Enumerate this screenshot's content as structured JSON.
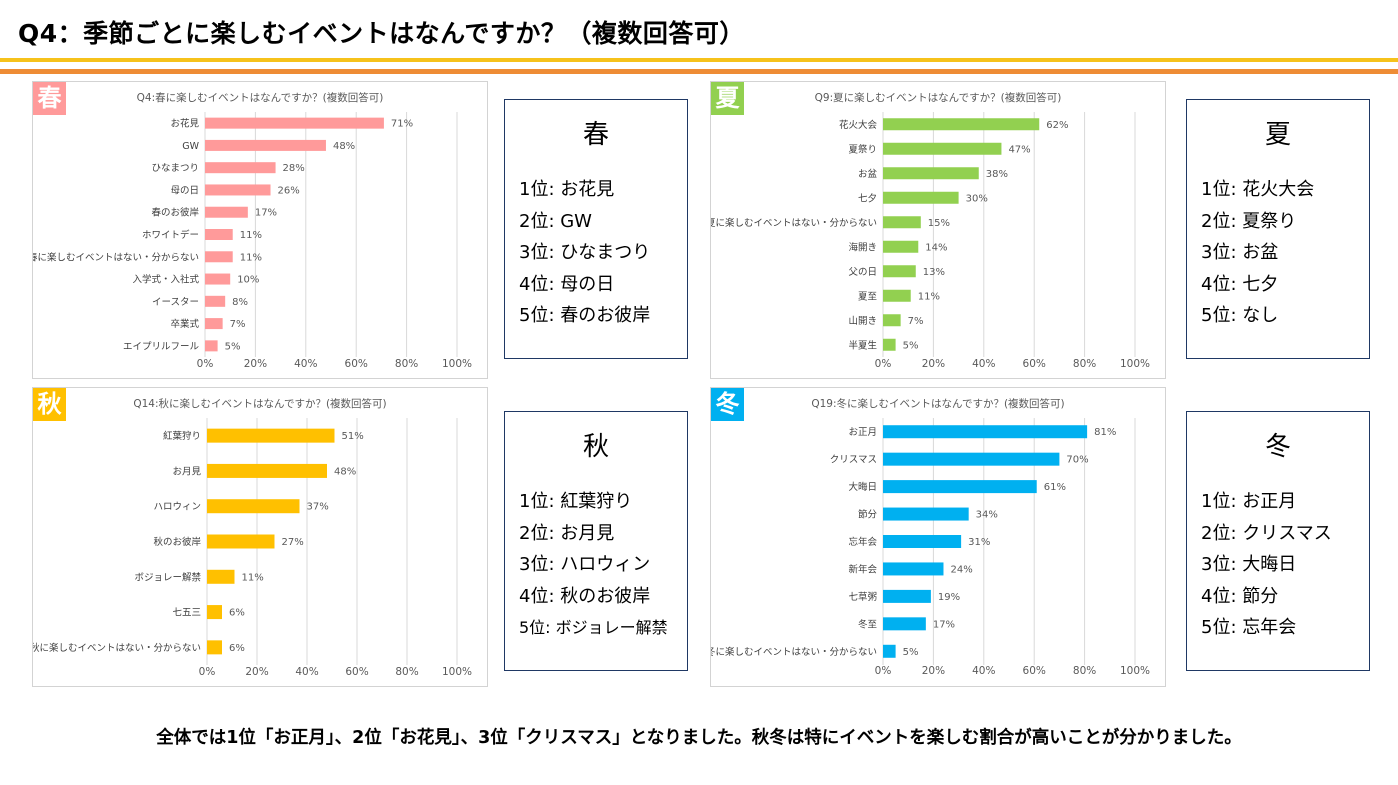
{
  "page_title": "Q4：季節ごとに楽しむイベントはなんですか？（複数回答可）",
  "colors": {
    "spring": "#ff9a9a",
    "summer": "#92d050",
    "autumn": "#ffc000",
    "winter": "#00b0f0",
    "rule_yellow": "#f6c21b",
    "rule_orange": "#ee8c35",
    "frame": "#1f3864"
  },
  "chart_data": [
    {
      "type": "bar",
      "orientation": "horizontal",
      "badge": "春",
      "title": "Q4:春に楽しむイベントはなんですか？(複数回答可)",
      "categories": [
        "お花見",
        "GW",
        "ひなまつり",
        "母の日",
        "春のお彼岸",
        "ホワイトデー",
        "春に楽しむイベントはない・分からない",
        "入学式・入社式",
        "イースター",
        "卒業式",
        "エイプリルフール"
      ],
      "values": [
        71,
        48,
        28,
        26,
        17,
        11,
        11,
        10,
        8,
        7,
        5
      ],
      "value_suffix": "%",
      "xlim": [
        0,
        100
      ],
      "ticks": [
        "0%",
        "20%",
        "40%",
        "60%",
        "80%",
        "100%"
      ],
      "grid": true
    },
    {
      "type": "bar",
      "orientation": "horizontal",
      "badge": "夏",
      "title": "Q9:夏に楽しむイベントはなんですか？(複数回答可)",
      "categories": [
        "花火大会",
        "夏祭り",
        "お盆",
        "七夕",
        "夏に楽しむイベントはない・分からない",
        "海開き",
        "父の日",
        "夏至",
        "山開き",
        "半夏生"
      ],
      "values": [
        62,
        47,
        38,
        30,
        15,
        14,
        13,
        11,
        7,
        5
      ],
      "value_suffix": "%",
      "xlim": [
        0,
        100
      ],
      "ticks": [
        "0%",
        "20%",
        "40%",
        "60%",
        "80%",
        "100%"
      ],
      "grid": true
    },
    {
      "type": "bar",
      "orientation": "horizontal",
      "badge": "秋",
      "title": "Q14:秋に楽しむイベントはなんですか？(複数回答可)",
      "categories": [
        "紅葉狩り",
        "お月見",
        "ハロウィン",
        "秋のお彼岸",
        "ボジョレー解禁",
        "七五三",
        "秋に楽しむイベントはない・分からない"
      ],
      "values": [
        51,
        48,
        37,
        27,
        11,
        6,
        6
      ],
      "value_suffix": "%",
      "xlim": [
        0,
        100
      ],
      "ticks": [
        "0%",
        "20%",
        "40%",
        "60%",
        "80%",
        "100%"
      ],
      "grid": true
    },
    {
      "type": "bar",
      "orientation": "horizontal",
      "badge": "冬",
      "title": "Q19:冬に楽しむイベントはなんですか？(複数回答可)",
      "categories": [
        "お正月",
        "クリスマス",
        "大晦日",
        "節分",
        "忘年会",
        "新年会",
        "七草粥",
        "冬至",
        "冬に楽しむイベントはない・分からない"
      ],
      "values": [
        81,
        70,
        61,
        34,
        31,
        24,
        19,
        17,
        5
      ],
      "value_suffix": "%",
      "xlim": [
        0,
        100
      ],
      "ticks": [
        "0%",
        "20%",
        "40%",
        "60%",
        "80%",
        "100%"
      ],
      "grid": true
    }
  ],
  "rankings": [
    {
      "season": "春",
      "items": [
        "1位:  お花見",
        "2位:  GW",
        "3位:  ひなまつり",
        "4位:  母の日",
        "5位:  春のお彼岸"
      ]
    },
    {
      "season": "夏",
      "items": [
        "1位:  花火大会",
        "2位:  夏祭り",
        "3位:  お盆",
        "4位:  七夕",
        "5位:  なし"
      ]
    },
    {
      "season": "秋",
      "items": [
        "1位:  紅葉狩り",
        "2位:  お月見",
        "3位:  ハロウィン",
        "4位:  秋のお彼岸",
        "5位:  ボジョレー解禁"
      ]
    },
    {
      "season": "冬",
      "items": [
        "1位:  お正月",
        "2位:  クリスマス",
        "3位:  大晦日",
        "4位:  節分",
        "5位:  忘年会"
      ]
    }
  ],
  "summary": "全体では1位「お正月」、2位「お花見」、3位「クリスマス」となりました。秋冬は特にイベントを楽しむ割合が高いことが分かりました。"
}
